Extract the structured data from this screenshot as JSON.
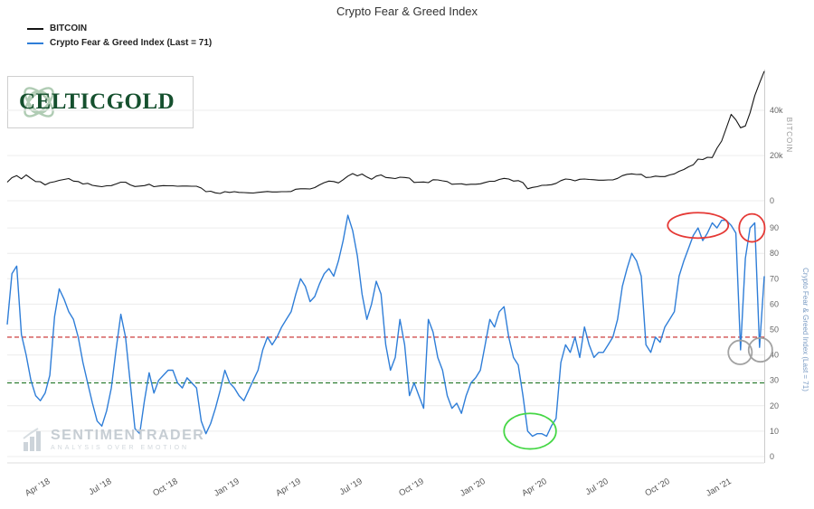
{
  "title": "Crypto Fear & Greed Index",
  "legend": [
    {
      "label": "BITCOIN",
      "color": "#141414"
    },
    {
      "label": "Crypto Fear & Greed Index (Last = 71)",
      "color": "#2f7ed8"
    }
  ],
  "logo": {
    "text": "CELTICGOLD",
    "color": "#15502e"
  },
  "watermark": {
    "name": "SENTIMENTRADER",
    "tagline": "Analysis over Emotion"
  },
  "chart_data": {
    "type": "line",
    "title": "Crypto Fear & Greed Index",
    "x_tick_labels": [
      "Apr '18",
      "Jul '18",
      "Oct '18",
      "Jan '19",
      "Apr '19",
      "Jul '19",
      "Oct '19",
      "Jan '20",
      "Apr '20",
      "Jul '20",
      "Oct '20",
      "Jan '21"
    ],
    "x_tick_indices": [
      8,
      21,
      35,
      48,
      61,
      74,
      87,
      100,
      113,
      126,
      139,
      152
    ],
    "panels": [
      {
        "name": "bitcoin",
        "ylabel": "BITCOIN",
        "y_unit": "thousand USD",
        "ylim": [
          0,
          58
        ],
        "yticks": [
          0,
          20,
          40
        ],
        "ytick_labels": [
          "0",
          "20k",
          "40k"
        ],
        "series": [
          {
            "name": "BITCOIN",
            "color": "#141414",
            "values": [
              8.2,
              10.2,
              11.1,
              9.7,
              11.4,
              9.9,
              8.5,
              8.4,
              7.0,
              8.0,
              8.4,
              9.0,
              9.4,
              9.8,
              8.7,
              8.5,
              7.4,
              7.7,
              6.8,
              6.5,
              6.2,
              6.6,
              6.7,
              7.4,
              8.2,
              8.2,
              7.0,
              6.3,
              6.5,
              6.7,
              7.3,
              6.2,
              6.5,
              6.7,
              6.6,
              6.6,
              6.4,
              6.5,
              6.5,
              6.4,
              6.4,
              5.6,
              4.0,
              4.2,
              3.5,
              3.2,
              4.0,
              3.7,
              4.0,
              3.7,
              3.6,
              3.5,
              3.4,
              3.7,
              3.9,
              4.1,
              3.9,
              3.9,
              4.0,
              4.0,
              4.1,
              5.1,
              5.3,
              5.3,
              5.2,
              5.8,
              7.0,
              8.0,
              8.7,
              8.5,
              7.9,
              9.3,
              10.9,
              12.0,
              11.0,
              11.8,
              10.5,
              9.5,
              10.9,
              11.4,
              10.3,
              10.1,
              9.8,
              10.4,
              10.3,
              10.0,
              8.1,
              8.2,
              8.3,
              8.0,
              9.3,
              9.2,
              8.8,
              8.5,
              7.3,
              7.4,
              7.5,
              7.1,
              7.3,
              7.3,
              7.5,
              8.1,
              8.6,
              8.6,
              9.4,
              9.9,
              9.6,
              8.7,
              8.9,
              8.0,
              5.3,
              5.9,
              6.2,
              6.8,
              6.9,
              7.1,
              7.7,
              8.9,
              9.6,
              9.4,
              8.8,
              9.5,
              9.6,
              9.4,
              9.3,
              9.1,
              9.1,
              9.2,
              9.2,
              9.9,
              11.1,
              11.7,
              11.9,
              11.6,
              11.7,
              10.3,
              10.4,
              10.9,
              10.7,
              10.7,
              11.4,
              11.9,
              13.0,
              13.8,
              15.0,
              15.9,
              18.4,
              18.2,
              19.2,
              19.1,
              23.2,
              26.4,
              32.2,
              38.2,
              35.8,
              32.3,
              33.1,
              38.9,
              46.5,
              52.1,
              57.3
            ]
          }
        ]
      },
      {
        "name": "fear_greed",
        "ylabel": "Crypto Fear & Greed Index (Last = 71)",
        "ylim": [
          0,
          100
        ],
        "yticks": [
          0,
          10,
          20,
          30,
          40,
          50,
          60,
          70,
          80,
          90
        ],
        "ytick_labels": [
          "0",
          "10",
          "20",
          "30",
          "40",
          "50",
          "60",
          "70",
          "80",
          "90"
        ],
        "last_value": 71,
        "threshold_lines": [
          {
            "name": "greed-threshold-line",
            "value": 47,
            "color": "#c62828",
            "style": "dashed"
          },
          {
            "name": "fear-threshold-line",
            "value": 29,
            "color": "#2e7d32",
            "style": "dashed"
          }
        ],
        "series": [
          {
            "name": "Crypto Fear & Greed Index",
            "color": "#2f7ed8",
            "values": [
              52,
              72,
              75,
              48,
              40,
              30,
              24,
              22,
              25,
              32,
              55,
              66,
              62,
              57,
              54,
              47,
              37,
              29,
              21,
              14,
              12,
              18,
              27,
              42,
              56,
              47,
              29,
              11,
              9,
              22,
              33,
              25,
              30,
              32,
              34,
              34,
              29,
              27,
              31,
              29,
              27,
              14,
              9,
              13,
              19,
              26,
              34,
              29,
              27,
              24,
              22,
              26,
              30,
              34,
              42,
              47,
              44,
              47,
              51,
              54,
              57,
              64,
              70,
              67,
              61,
              63,
              68,
              72,
              74,
              71,
              77,
              85,
              95,
              89,
              79,
              64,
              54,
              60,
              69,
              64,
              44,
              34,
              39,
              54,
              44,
              24,
              29,
              24,
              19,
              54,
              49,
              39,
              34,
              24,
              19,
              21,
              17,
              24,
              29,
              31,
              34,
              44,
              54,
              51,
              57,
              59,
              47,
              39,
              36,
              24,
              10,
              8,
              9,
              9,
              8,
              12,
              15,
              37,
              44,
              41,
              47,
              39,
              51,
              44,
              39,
              41,
              41,
              44,
              47,
              54,
              67,
              74,
              80,
              77,
              71,
              44,
              41,
              47,
              45,
              51,
              54,
              57,
              71,
              77,
              82,
              87,
              90,
              85,
              88,
              92,
              90,
              93,
              93,
              91,
              88,
              42,
              78,
              90,
              92,
              43,
              71
            ]
          }
        ],
        "annotations": [
          {
            "name": "covid-low-green-ellipse",
            "shape": "ellipse",
            "color": "#46d746",
            "x": 110.5,
            "y": 10,
            "rx": 5.5,
            "ry": 7
          },
          {
            "name": "extreme-greed-red-ellipse-1",
            "shape": "ellipse",
            "color": "#e53935",
            "x": 146,
            "y": 91,
            "rx": 6.4,
            "ry": 5
          },
          {
            "name": "extreme-greed-red-ellipse-2",
            "shape": "ellipse",
            "color": "#e53935",
            "x": 157.4,
            "y": 90,
            "rx": 2.7,
            "ry": 5.5
          },
          {
            "name": "pullback-grey-circle-1",
            "shape": "ellipse",
            "color": "#a2a2a2",
            "x": 154.9,
            "y": 41,
            "rx": 2.5,
            "ry": 4.7
          },
          {
            "name": "pullback-grey-circle-2",
            "shape": "ellipse",
            "color": "#a2a2a2",
            "x": 159.2,
            "y": 42,
            "rx": 2.5,
            "ry": 4.7
          }
        ]
      }
    ]
  }
}
